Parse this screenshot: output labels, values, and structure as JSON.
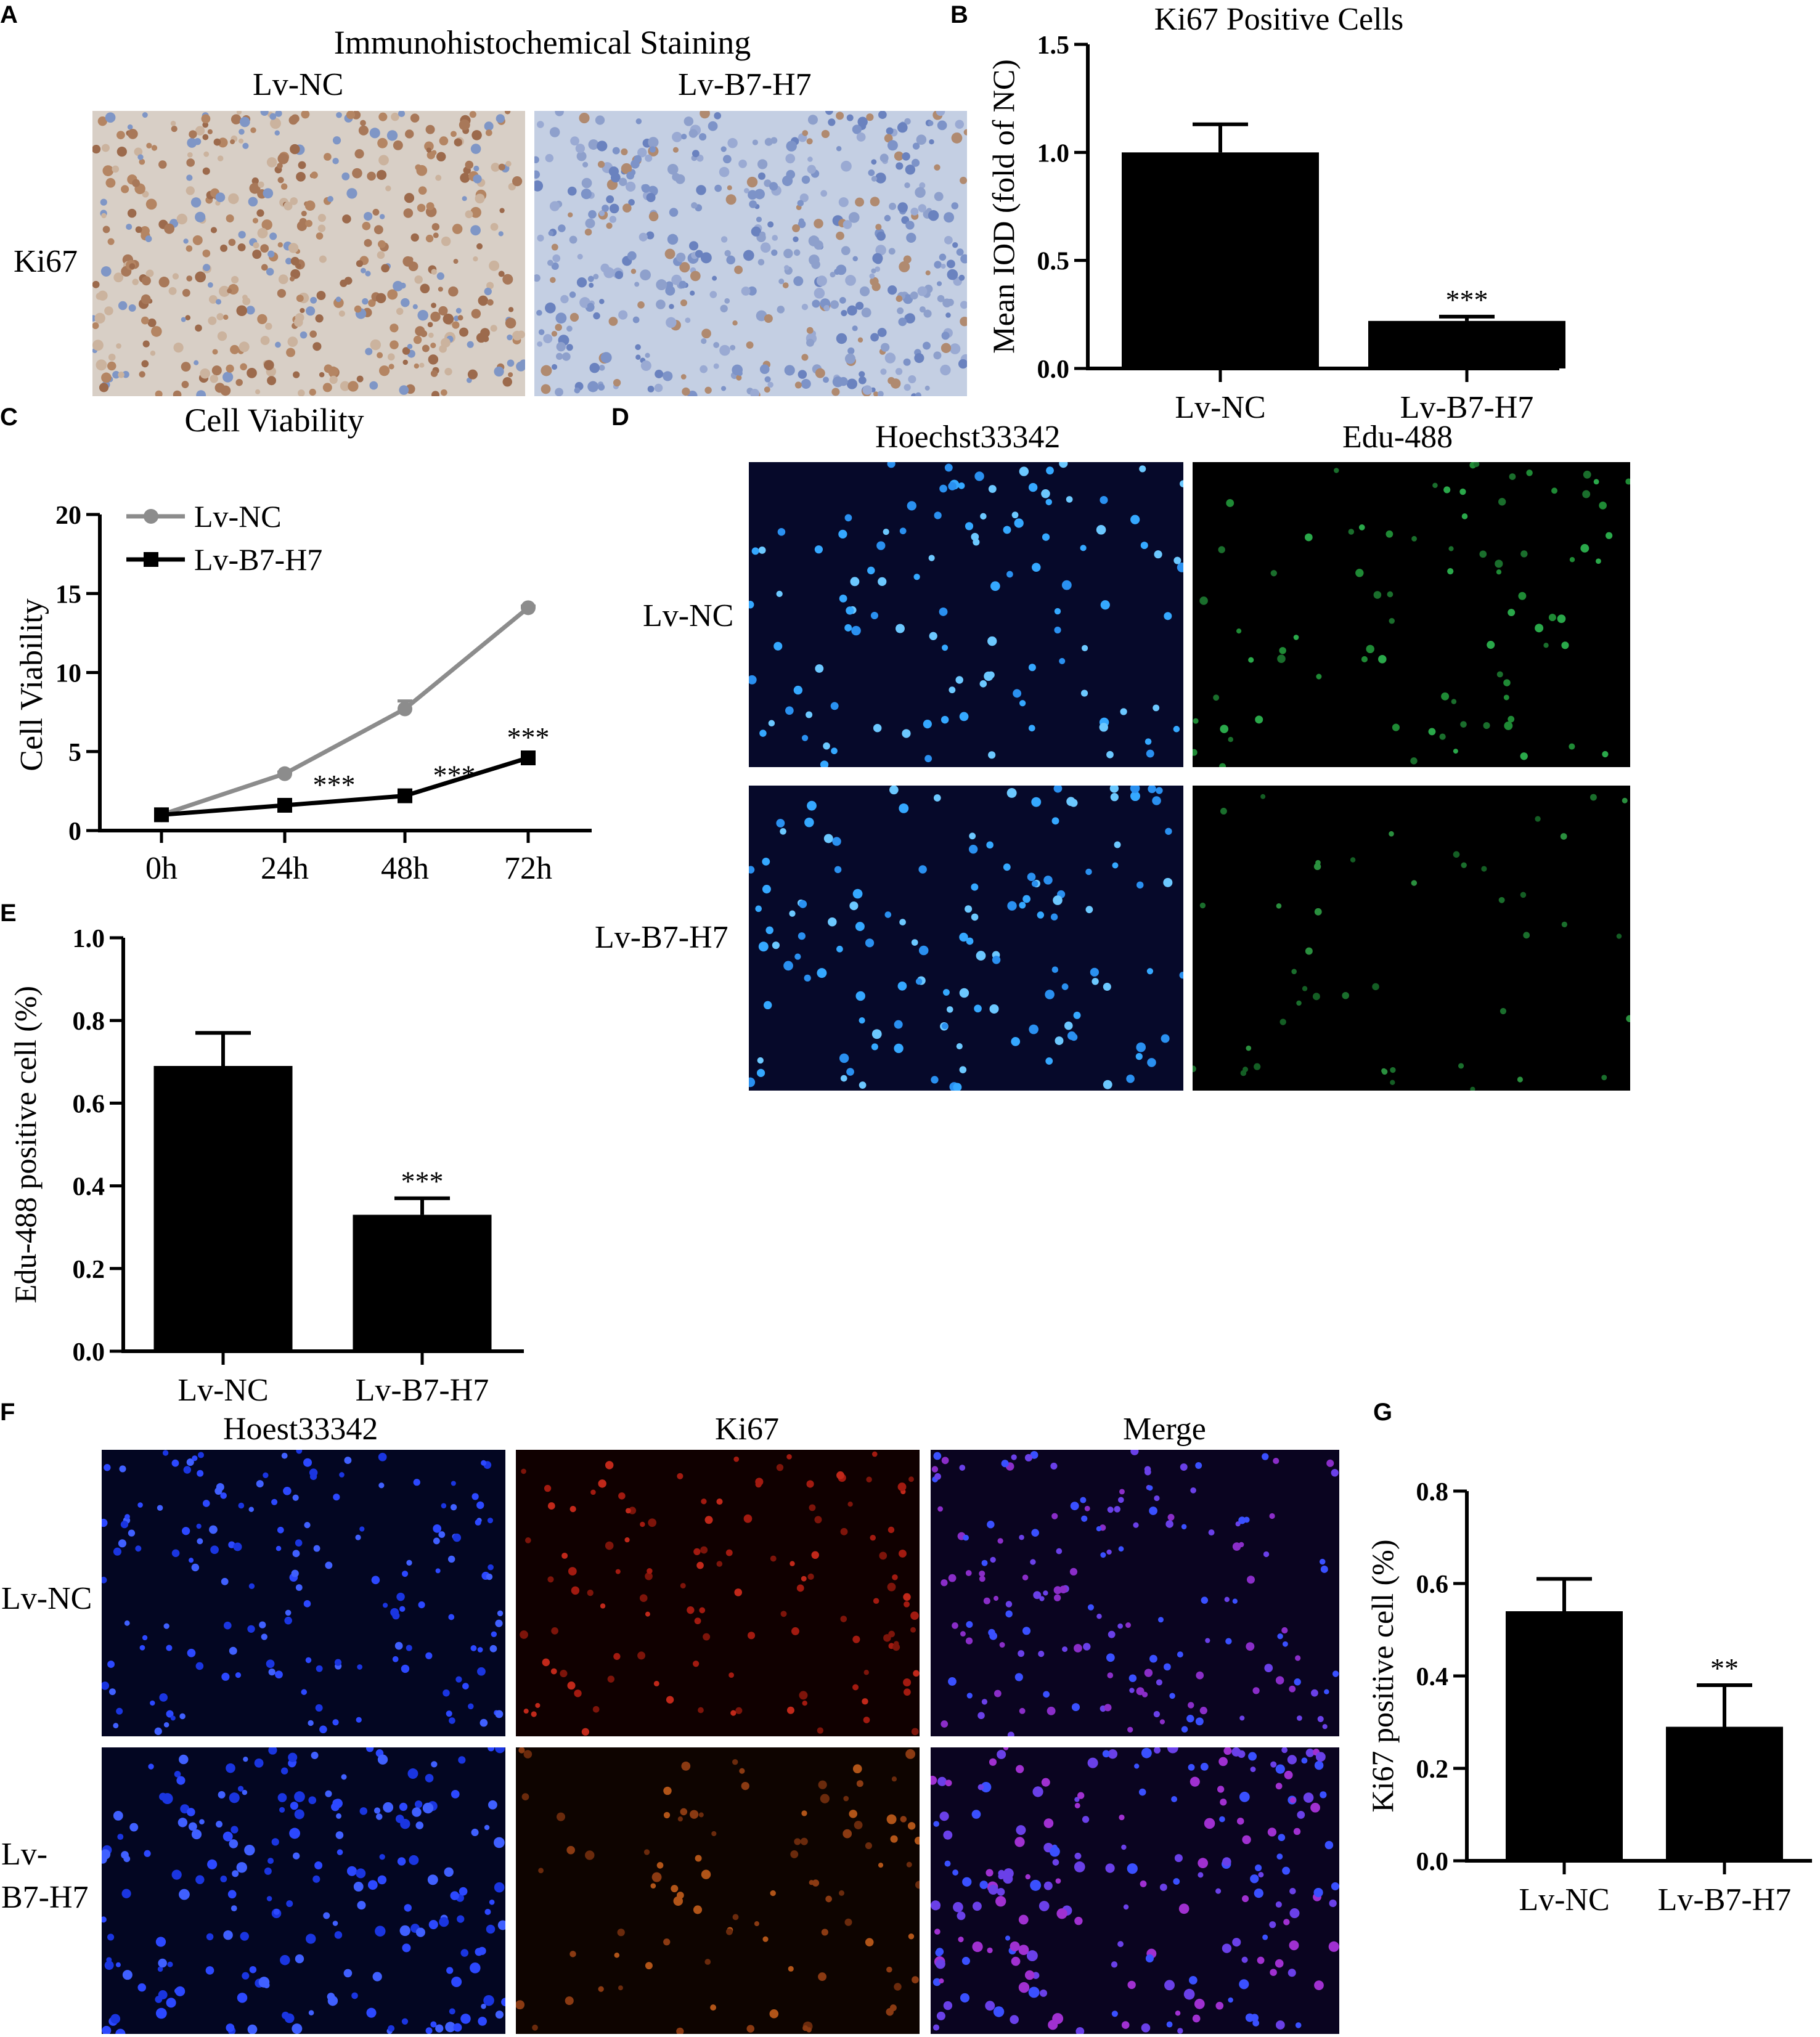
{
  "panels": {
    "A": {
      "letter": "A",
      "title": "Immunohistochemical Staining",
      "columns": [
        "Lv-NC",
        "Lv-B7-H7"
      ],
      "row_label": "Ki67",
      "colors": {
        "stain_bg": "#cdd6e6",
        "brown": "#a8704c",
        "blue": "#6d86c0"
      }
    },
    "B": {
      "letter": "B",
      "title": "Ki67 Positive Cells",
      "ylabel": "Mean IOD (fold of NC)",
      "yticks": [
        "0.0",
        "0.5",
        "1.0",
        "1.5"
      ],
      "significance": [
        "",
        "***"
      ]
    },
    "C": {
      "letter": "C",
      "title": "Cell Viability",
      "ylabel": "Cell Viability",
      "yticks": [
        "0",
        "5",
        "10",
        "15",
        "20"
      ],
      "legend": [
        "Lv-NC",
        "Lv-B7-H7"
      ],
      "significance": [
        "",
        "***",
        "***",
        "***"
      ]
    },
    "D": {
      "letter": "D",
      "columns": [
        "Hoechst33342",
        "Edu-488"
      ],
      "rows": [
        "Lv-NC",
        "Lv-B7-H7"
      ]
    },
    "E": {
      "letter": "E",
      "ylabel": "Edu-488 positive cell (%)",
      "yticks": [
        "0.0",
        "0.2",
        "0.4",
        "0.6",
        "0.8",
        "1.0"
      ],
      "significance": [
        "",
        "***"
      ]
    },
    "F": {
      "letter": "F",
      "columns": [
        "Hoest33342",
        "Ki67",
        "Merge"
      ],
      "rows": [
        "Lv-NC",
        "Lv-\nB7-H7"
      ]
    },
    "G": {
      "letter": "G",
      "ylabel": "Ki67 positive cell (%)",
      "yticks": [
        "0.0",
        "0.2",
        "0.4",
        "0.6",
        "0.8"
      ],
      "significance": [
        "",
        "**"
      ]
    }
  },
  "chart_data": [
    {
      "panel": "B",
      "type": "bar",
      "title": "Ki67 Positive Cells",
      "xlabel": "",
      "ylabel": "Mean IOD (fold of NC)",
      "categories": [
        "Lv-NC",
        "Lv-B7-H7"
      ],
      "values": [
        1.0,
        0.22
      ],
      "errors": [
        0.13,
        0.02
      ],
      "ylim": [
        0,
        1.5
      ],
      "grid": false
    },
    {
      "panel": "C",
      "type": "line",
      "title": "Cell Viability",
      "xlabel": "",
      "ylabel": "Cell Viability",
      "x": [
        "0h",
        "24h",
        "48h",
        "72h"
      ],
      "series": [
        {
          "name": "Lv-NC",
          "values": [
            1.0,
            3.6,
            7.7,
            14.1
          ],
          "errors": [
            0,
            0.1,
            0.5,
            0.1
          ],
          "color": "#8c8c8c",
          "marker": "circle"
        },
        {
          "name": "Lv-B7-H7",
          "values": [
            1.0,
            1.6,
            2.2,
            4.6
          ],
          "errors": [
            0,
            0.1,
            0.2,
            0.15
          ],
          "color": "#000000",
          "marker": "square"
        }
      ],
      "ylim": [
        0,
        20
      ],
      "legend": "top-left",
      "grid": false
    },
    {
      "panel": "E",
      "type": "bar",
      "title": "",
      "xlabel": "",
      "ylabel": "Edu-488 positive cell (%)",
      "categories": [
        "Lv-NC",
        "Lv-B7-H7"
      ],
      "values": [
        0.69,
        0.33
      ],
      "errors": [
        0.08,
        0.04
      ],
      "ylim": [
        0,
        1.0
      ],
      "grid": false
    },
    {
      "panel": "G",
      "type": "bar",
      "title": "",
      "xlabel": "",
      "ylabel": "Ki67 positive cell (%)",
      "categories": [
        "Lv-NC",
        "Lv-B7-H7"
      ],
      "values": [
        0.54,
        0.29
      ],
      "errors": [
        0.07,
        0.09
      ],
      "ylim": [
        0,
        0.8
      ],
      "grid": false
    }
  ]
}
